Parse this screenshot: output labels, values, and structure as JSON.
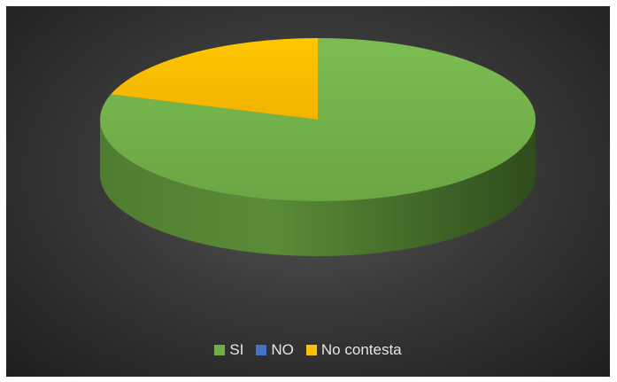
{
  "chart_data": {
    "type": "pie",
    "title": "",
    "style": "3d",
    "categories": [
      "SI",
      "NO",
      "No contesta"
    ],
    "values": [
      80,
      0,
      20
    ],
    "colors": [
      "#70ad47",
      "#4472c4",
      "#ffc000"
    ],
    "legend_position": "bottom"
  }
}
